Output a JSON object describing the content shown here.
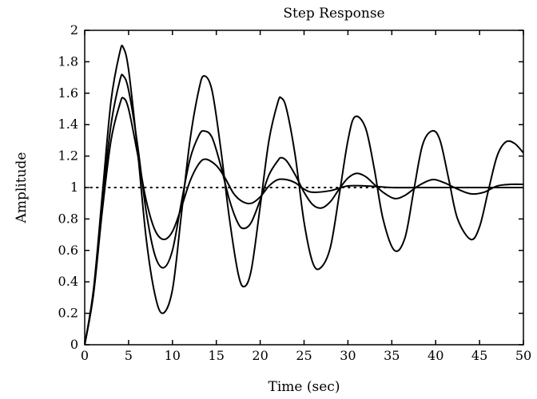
{
  "chart_data": {
    "type": "line",
    "title": "Step Response",
    "xlabel": "Time (sec)",
    "ylabel": "Amplitude",
    "xlim": [
      0,
      50
    ],
    "ylim": [
      0,
      2
    ],
    "xticks": [
      0,
      5,
      10,
      15,
      20,
      25,
      30,
      35,
      40,
      45,
      50
    ],
    "yticks": [
      0,
      0.2,
      0.4,
      0.6,
      0.8,
      1,
      1.2,
      1.4,
      1.6,
      1.8,
      2
    ],
    "ytick_labels": [
      "0",
      "0.2",
      "0.4",
      "0.6",
      "0.8",
      "1",
      "1.2",
      "1.4",
      "1.6",
      "1.8",
      "2"
    ],
    "grid": false,
    "legend": "none",
    "line_color": "#000000",
    "reference_line": {
      "y": 1,
      "style": "dotted"
    },
    "series": [
      {
        "x": [
          0,
          1,
          2,
          3,
          4,
          4.4,
          5,
          6,
          7,
          8,
          8.9,
          10,
          11,
          12,
          13,
          13.6,
          14.5,
          15.5,
          16.5,
          17.5,
          18.2,
          19,
          20,
          21,
          22,
          22.4,
          23,
          24,
          25,
          26,
          26.9,
          28,
          29,
          30,
          30.8,
          32,
          33,
          34,
          35.3,
          36.5,
          37.5,
          38.5,
          39.6,
          40.5,
          41.5,
          42.5,
          44,
          45,
          46,
          47,
          48,
          49,
          50
        ],
        "values": [
          0,
          0.35,
          0.95,
          1.55,
          1.86,
          1.89,
          1.75,
          1.25,
          0.68,
          0.32,
          0.2,
          0.35,
          0.82,
          1.3,
          1.62,
          1.71,
          1.62,
          1.25,
          0.8,
          0.45,
          0.37,
          0.48,
          0.88,
          1.3,
          1.54,
          1.57,
          1.5,
          1.2,
          0.78,
          0.52,
          0.49,
          0.62,
          0.95,
          1.3,
          1.45,
          1.38,
          1.12,
          0.8,
          0.6,
          0.68,
          0.98,
          1.27,
          1.36,
          1.3,
          1.05,
          0.8,
          0.67,
          0.75,
          0.98,
          1.2,
          1.29,
          1.28,
          1.22
        ]
      },
      {
        "x": [
          0,
          1,
          2,
          3,
          4,
          4.4,
          5,
          6,
          7,
          8,
          9,
          10,
          11,
          12,
          13,
          13.6,
          14.5,
          15.5,
          16.5,
          17.5,
          18.2,
          19,
          20,
          21,
          22,
          22.4,
          23,
          24,
          25,
          26,
          27,
          28,
          29,
          30,
          31,
          32,
          33,
          34,
          35.3,
          36.5,
          38,
          39.6,
          41,
          42.5,
          44,
          45.5,
          47,
          48.5,
          50
        ],
        "values": [
          0,
          0.33,
          0.9,
          1.4,
          1.68,
          1.71,
          1.62,
          1.28,
          0.85,
          0.57,
          0.49,
          0.6,
          0.9,
          1.18,
          1.33,
          1.36,
          1.32,
          1.14,
          0.92,
          0.77,
          0.74,
          0.78,
          0.92,
          1.08,
          1.17,
          1.19,
          1.17,
          1.08,
          0.97,
          0.89,
          0.87,
          0.91,
          0.99,
          1.06,
          1.09,
          1.07,
          1.02,
          0.97,
          0.93,
          0.95,
          1.01,
          1.05,
          1.03,
          0.99,
          0.96,
          0.97,
          1.01,
          1.02,
          1.02
        ]
      },
      {
        "x": [
          0,
          1,
          2,
          3,
          4,
          4.4,
          5,
          6,
          7,
          8,
          9,
          10,
          11,
          12,
          13,
          13.8,
          15,
          16,
          17,
          18,
          19,
          20,
          21,
          22,
          23,
          24,
          25,
          26,
          28,
          30,
          32,
          35,
          38,
          41,
          44,
          47,
          50
        ],
        "values": [
          0,
          0.32,
          0.85,
          1.3,
          1.53,
          1.57,
          1.5,
          1.22,
          0.92,
          0.73,
          0.67,
          0.72,
          0.87,
          1.04,
          1.15,
          1.18,
          1.14,
          1.06,
          0.96,
          0.91,
          0.9,
          0.94,
          1.01,
          1.05,
          1.05,
          1.03,
          0.99,
          0.97,
          0.98,
          1.01,
          1.01,
          1.0,
          1.0,
          1.0,
          1.0,
          1.0,
          1.0
        ]
      }
    ]
  }
}
